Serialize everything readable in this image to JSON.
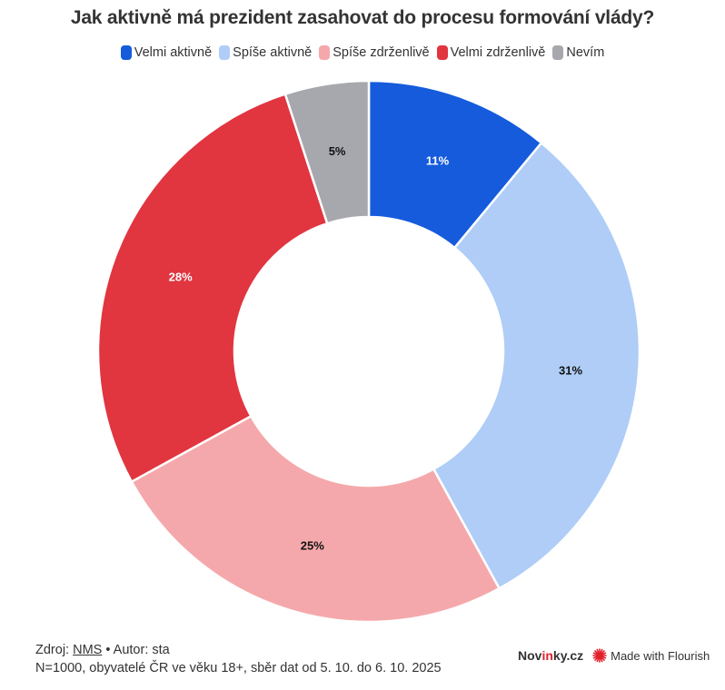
{
  "chart_data": {
    "type": "pie",
    "variant": "donut",
    "title": "Jak aktivně má prezident zasahovat do procesu formování vlády?",
    "categories": [
      "Velmi aktivně",
      "Spíše aktivně",
      "Spíše zdrženlivě",
      "Velmi zdrženlivě",
      "Nevím"
    ],
    "values": [
      11,
      31,
      25,
      28,
      5
    ],
    "labels": [
      "11%",
      "31%",
      "25%",
      "28%",
      "5%"
    ],
    "colors": [
      "#155bdc",
      "#afcdf6",
      "#f5a8ab",
      "#e1353f",
      "#a6a8ad"
    ],
    "label_colors": [
      "#ffffff",
      "#111111",
      "#111111",
      "#ffffff",
      "#111111"
    ],
    "legend_position": "top-center"
  },
  "footer": {
    "source_prefix": "Zdroj: ",
    "source_link": "NMS",
    "author": " • Autor: sta",
    "note": "N=1000, obyvatelé ČR ve věku 18+, sběr dat od 5. 10. do 6. 10. 2025"
  },
  "branding": {
    "novinky_a": "Nov",
    "novinky_b": "in",
    "novinky_c": "ky.cz",
    "flourish": "Made with Flourish"
  }
}
